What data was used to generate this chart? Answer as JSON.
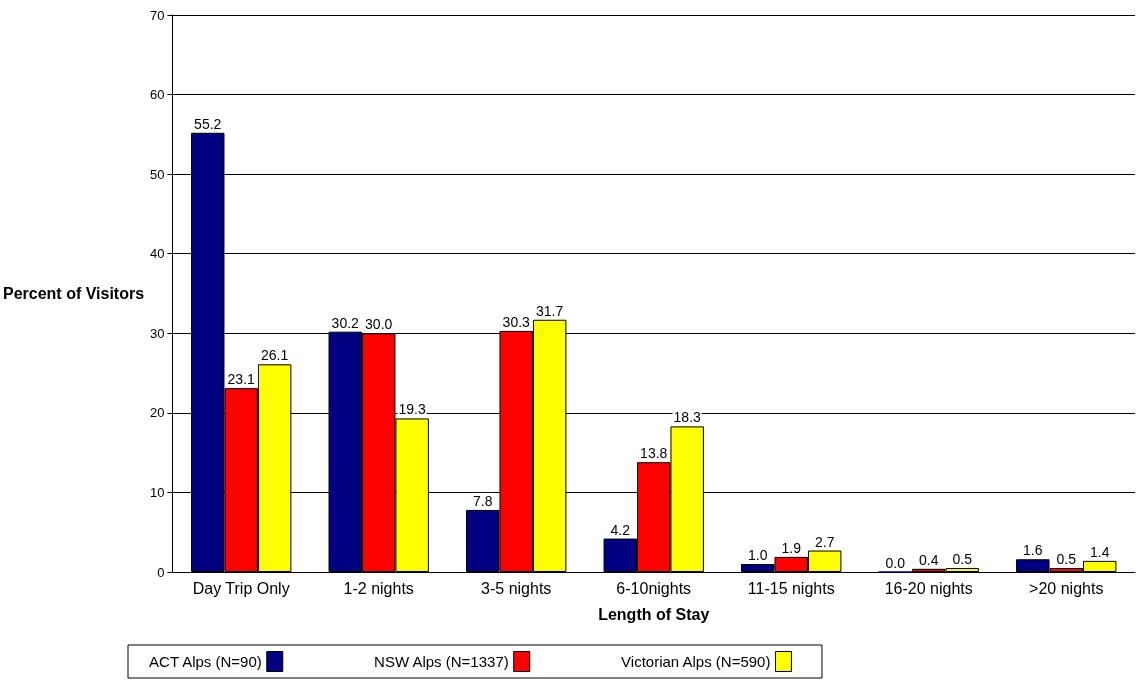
{
  "chart_data": {
    "type": "bar",
    "xlabel": "Length of Stay",
    "ylabel": "Percent of Visitors",
    "categories": [
      "Day Trip Only",
      "1-2 nights",
      "3-5 nights",
      "6-10nights",
      "11-15 nights",
      "16-20 nights",
      ">20 nights"
    ],
    "series": [
      {
        "name": "ACT Alps (N=90)",
        "color": "#000080",
        "values": [
          55.2,
          30.2,
          7.8,
          4.2,
          1.0,
          0.0,
          1.6
        ],
        "value_labels": [
          "55.2",
          "30.2",
          "7.8",
          "4.2",
          "1.0",
          "0.0",
          "1.6"
        ]
      },
      {
        "name": "NSW Alps (N=1337)",
        "color": "#ff0000",
        "values": [
          23.1,
          30.0,
          30.3,
          13.8,
          1.9,
          0.4,
          0.5
        ],
        "value_labels": [
          "23.1",
          "30.0",
          "30.3",
          "13.8",
          "1.9",
          "0.4",
          "0.5"
        ]
      },
      {
        "name": "Victorian Alps (N=590)",
        "color": "#ffff00",
        "values": [
          26.1,
          19.3,
          31.7,
          18.3,
          2.7,
          0.5,
          1.4
        ],
        "value_labels": [
          "26.1",
          "19.3",
          "31.7",
          "18.3",
          "2.7",
          "0.5",
          "1.4"
        ]
      }
    ],
    "ylim": [
      0,
      70
    ],
    "yticks": [
      0,
      10,
      20,
      30,
      40,
      50,
      60,
      70
    ],
    "grid": "y",
    "legend": "bottom"
  }
}
